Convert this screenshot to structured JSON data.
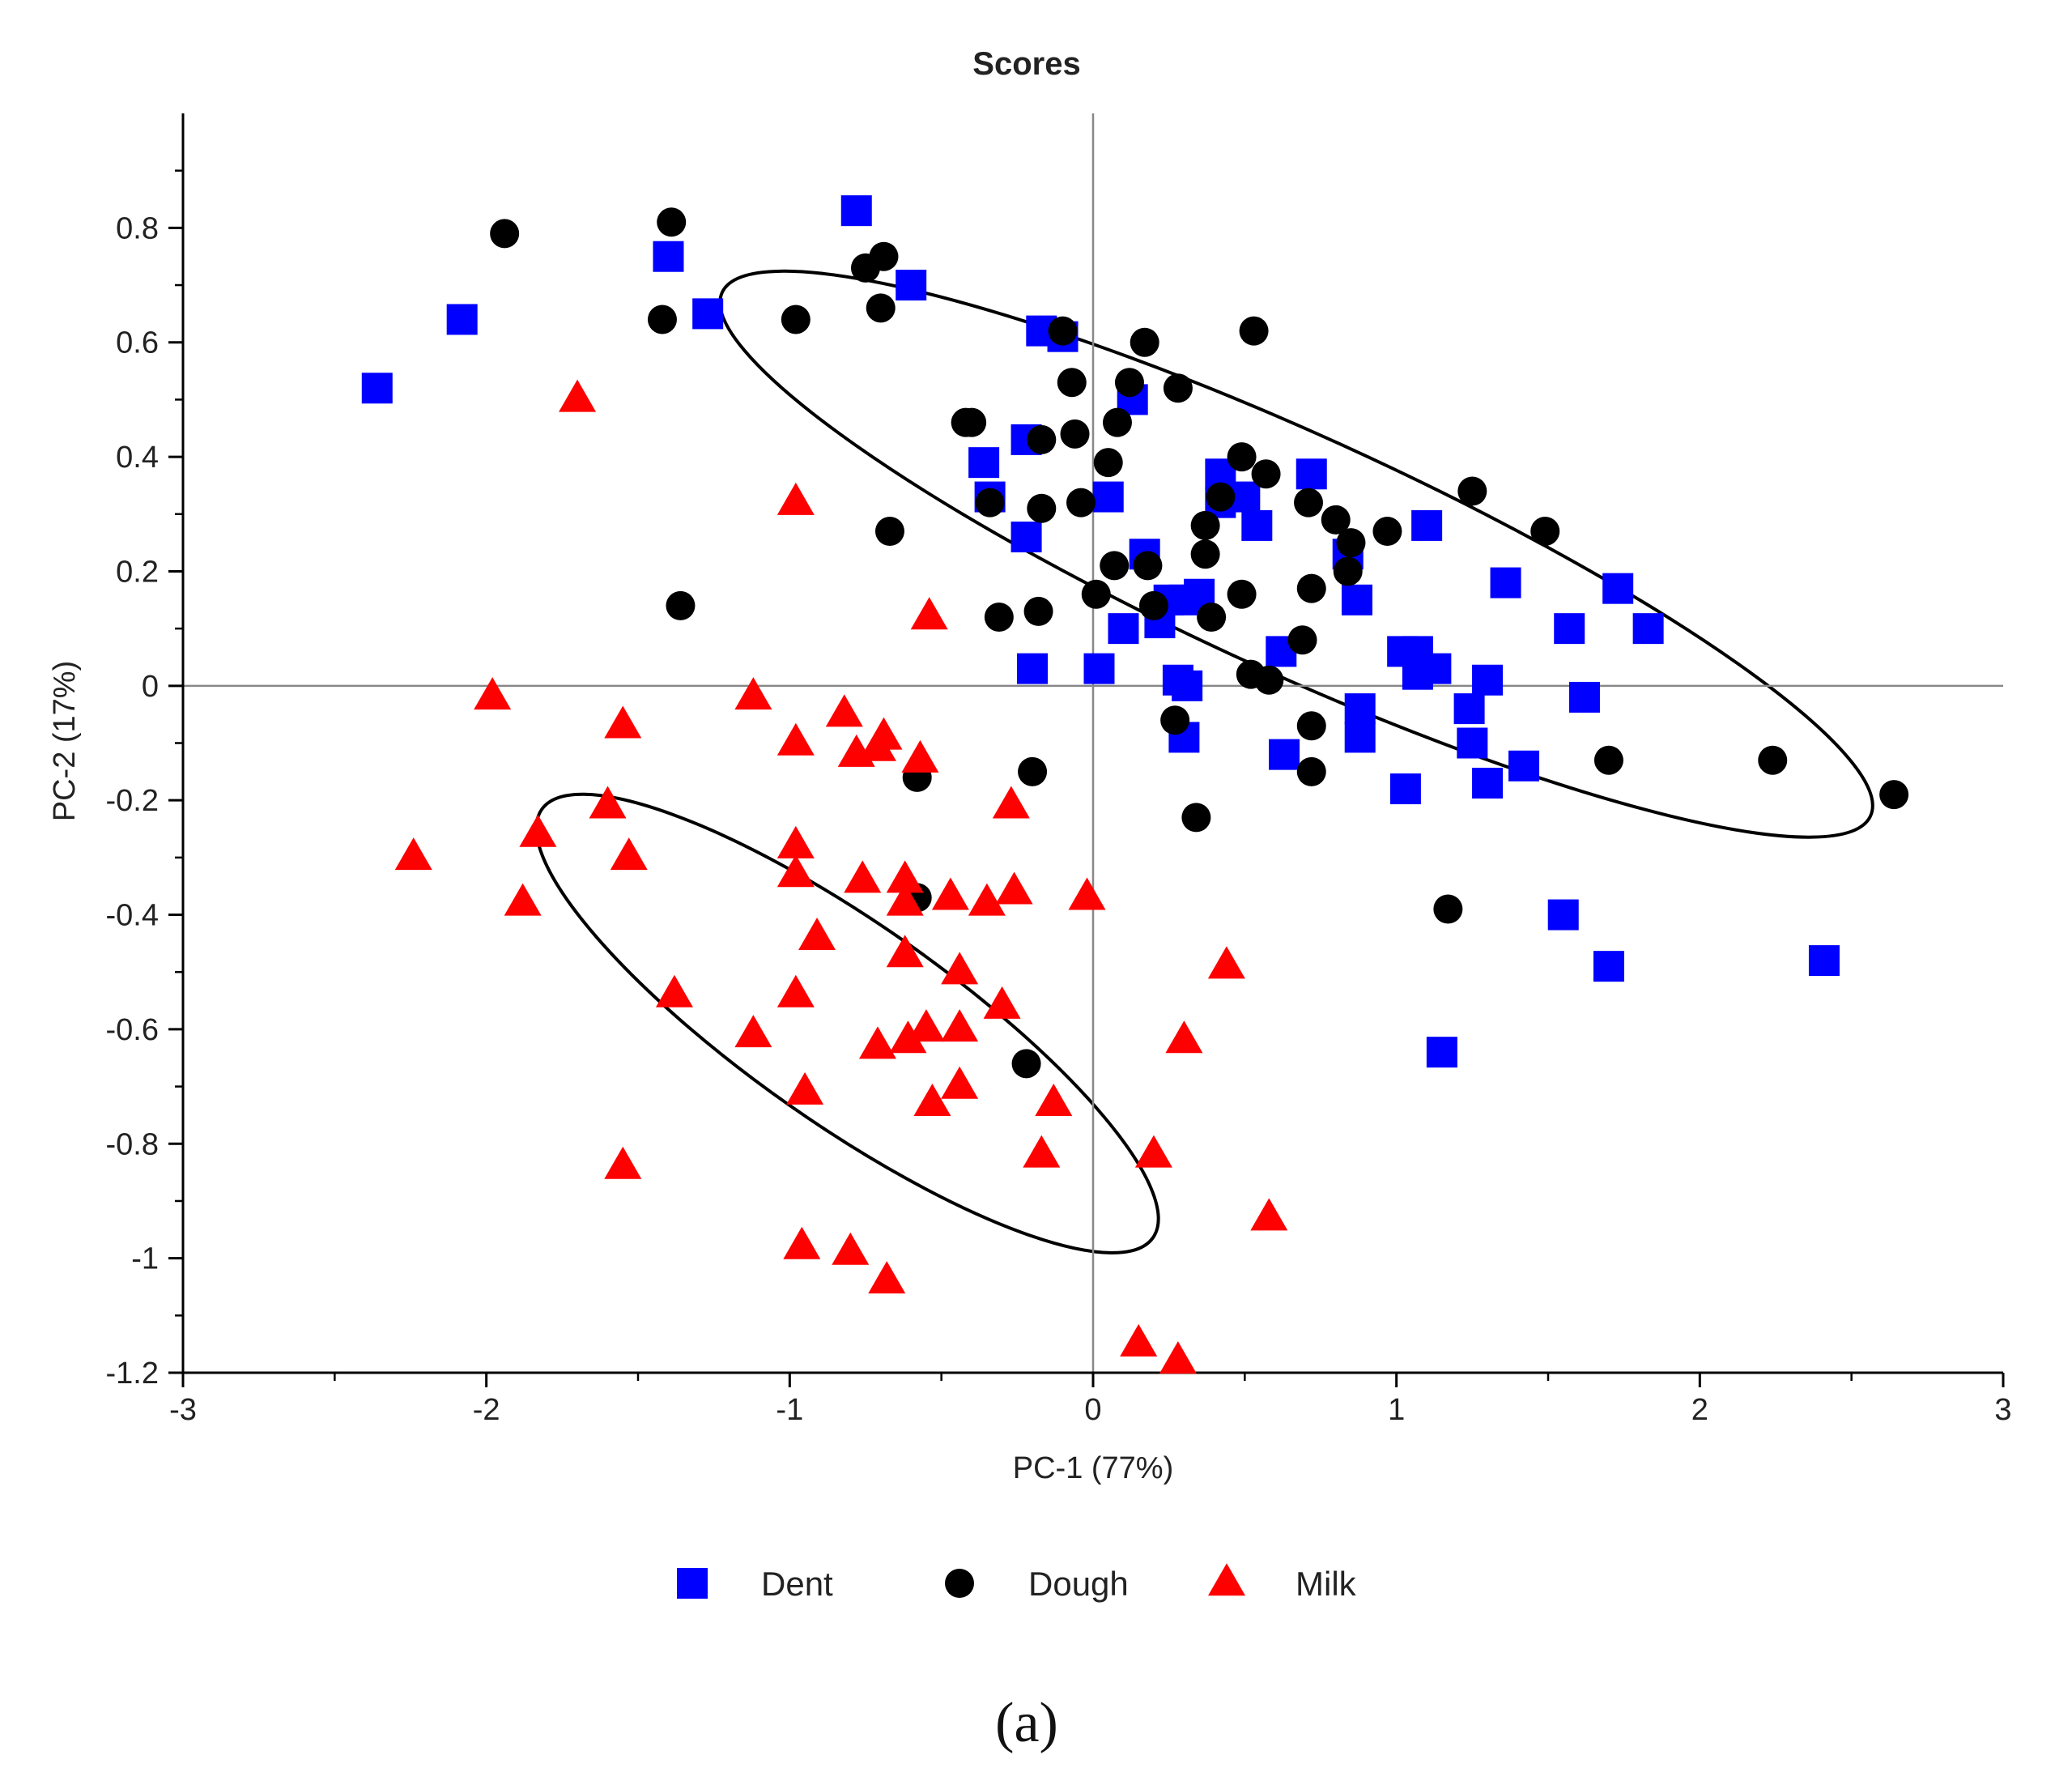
{
  "chart_data": {
    "type": "scatter",
    "title": "Scores",
    "xlabel": "PC-1 (77%)",
    "ylabel": "PC-2 (17%)",
    "xlim": [
      -3,
      3
    ],
    "ylim": [
      -1.2,
      1.0
    ],
    "xticks": [
      -3,
      -2,
      -1,
      0,
      1,
      2,
      3
    ],
    "yticks": [
      -1.2,
      -1,
      -0.8,
      -0.6,
      -0.4,
      -0.2,
      0,
      0.2,
      0.4,
      0.6,
      0.8
    ],
    "grid": false,
    "reference_lines": {
      "x": 0,
      "y": 0
    },
    "legend_position": "bottom",
    "caption": "(a)",
    "series": [
      {
        "name": "Dent",
        "marker": "square",
        "color": "#0000ff",
        "points": [
          [
            -2.36,
            0.52
          ],
          [
            -2.08,
            0.64
          ],
          [
            -1.4,
            0.75
          ],
          [
            -1.27,
            0.65
          ],
          [
            -0.78,
            0.83
          ],
          [
            -0.6,
            0.7
          ],
          [
            -0.17,
            0.62
          ],
          [
            -0.1,
            0.61
          ],
          [
            0.13,
            0.5
          ],
          [
            -0.22,
            0.43
          ],
          [
            -0.36,
            0.39
          ],
          [
            -0.34,
            0.33
          ],
          [
            0.05,
            0.33
          ],
          [
            -0.22,
            0.26
          ],
          [
            0.17,
            0.23
          ],
          [
            0.25,
            0.15
          ],
          [
            0.3,
            0.15
          ],
          [
            0.35,
            0.16
          ],
          [
            0.1,
            0.1
          ],
          [
            0.22,
            0.11
          ],
          [
            -0.2,
            0.03
          ],
          [
            0.02,
            0.03
          ],
          [
            0.28,
            0.01
          ],
          [
            0.31,
            0.0
          ],
          [
            0.3,
            -0.09
          ],
          [
            0.42,
            0.37
          ],
          [
            0.42,
            0.32
          ],
          [
            0.5,
            0.33
          ],
          [
            0.54,
            0.28
          ],
          [
            0.72,
            0.37
          ],
          [
            0.84,
            0.23
          ],
          [
            0.87,
            0.15
          ],
          [
            0.62,
            0.06
          ],
          [
            0.63,
            -0.12
          ],
          [
            0.88,
            -0.04
          ],
          [
            0.88,
            -0.09
          ],
          [
            1.02,
            0.06
          ],
          [
            1.07,
            0.06
          ],
          [
            1.13,
            0.03
          ],
          [
            1.07,
            0.02
          ],
          [
            1.1,
            0.28
          ],
          [
            1.03,
            -0.18
          ],
          [
            1.24,
            -0.04
          ],
          [
            1.25,
            -0.1
          ],
          [
            1.3,
            -0.17
          ],
          [
            1.3,
            0.01
          ],
          [
            1.36,
            0.18
          ],
          [
            1.42,
            -0.14
          ],
          [
            1.57,
            0.1
          ],
          [
            1.62,
            -0.02
          ],
          [
            1.73,
            0.17
          ],
          [
            1.83,
            0.1
          ],
          [
            1.55,
            -0.4
          ],
          [
            1.7,
            -0.49
          ],
          [
            1.15,
            -0.64
          ],
          [
            2.41,
            -0.48
          ]
        ]
      },
      {
        "name": "Dough",
        "marker": "circle",
        "color": "#000000",
        "points": [
          [
            -1.94,
            0.79
          ],
          [
            -1.39,
            0.81
          ],
          [
            -1.42,
            0.64
          ],
          [
            -0.98,
            0.64
          ],
          [
            -0.75,
            0.73
          ],
          [
            -0.69,
            0.75
          ],
          [
            -0.7,
            0.66
          ],
          [
            -0.1,
            0.62
          ],
          [
            -0.42,
            0.46
          ],
          [
            -0.4,
            0.46
          ],
          [
            -0.17,
            0.43
          ],
          [
            -0.07,
            0.53
          ],
          [
            0.12,
            0.53
          ],
          [
            0.17,
            0.6
          ],
          [
            0.28,
            0.52
          ],
          [
            0.08,
            0.46
          ],
          [
            -0.06,
            0.44
          ],
          [
            0.05,
            0.39
          ],
          [
            -0.04,
            0.32
          ],
          [
            -0.34,
            0.32
          ],
          [
            -0.17,
            0.31
          ],
          [
            -0.67,
            0.27
          ],
          [
            0.37,
            0.28
          ],
          [
            0.49,
            0.4
          ],
          [
            0.57,
            0.37
          ],
          [
            0.53,
            0.62
          ],
          [
            0.42,
            0.33
          ],
          [
            0.71,
            0.32
          ],
          [
            0.8,
            0.29
          ],
          [
            0.85,
            0.25
          ],
          [
            0.84,
            0.2
          ],
          [
            0.97,
            0.27
          ],
          [
            1.25,
            0.34
          ],
          [
            1.49,
            0.27
          ],
          [
            0.07,
            0.21
          ],
          [
            0.18,
            0.21
          ],
          [
            0.37,
            0.23
          ],
          [
            0.01,
            0.16
          ],
          [
            0.2,
            0.14
          ],
          [
            0.39,
            0.12
          ],
          [
            0.49,
            0.16
          ],
          [
            0.72,
            0.17
          ],
          [
            -0.18,
            0.13
          ],
          [
            -0.31,
            0.12
          ],
          [
            0.69,
            0.08
          ],
          [
            0.52,
            0.02
          ],
          [
            0.58,
            0.01
          ],
          [
            0.27,
            -0.06
          ],
          [
            0.72,
            -0.07
          ],
          [
            0.72,
            -0.15
          ],
          [
            -1.36,
            0.14
          ],
          [
            -0.2,
            -0.15
          ],
          [
            -0.58,
            -0.16
          ],
          [
            0.34,
            -0.23
          ],
          [
            -0.58,
            -0.37
          ],
          [
            1.17,
            -0.39
          ],
          [
            1.7,
            -0.13
          ],
          [
            2.24,
            -0.13
          ],
          [
            2.64,
            -0.19
          ],
          [
            -0.22,
            -0.66
          ]
        ]
      },
      {
        "name": "Milk",
        "marker": "triangle",
        "color": "#ff0000",
        "points": [
          [
            -1.7,
            0.5
          ],
          [
            -0.98,
            0.32
          ],
          [
            -0.54,
            0.12
          ],
          [
            -1.98,
            -0.02
          ],
          [
            -1.12,
            -0.02
          ],
          [
            -1.55,
            -0.07
          ],
          [
            -0.82,
            -0.05
          ],
          [
            -0.98,
            -0.1
          ],
          [
            -0.78,
            -0.12
          ],
          [
            -0.69,
            -0.09
          ],
          [
            -0.71,
            -0.11
          ],
          [
            -0.57,
            -0.13
          ],
          [
            -1.6,
            -0.21
          ],
          [
            -1.83,
            -0.26
          ],
          [
            -2.24,
            -0.3
          ],
          [
            -1.53,
            -0.3
          ],
          [
            -0.98,
            -0.28
          ],
          [
            -0.98,
            -0.33
          ],
          [
            -0.76,
            -0.34
          ],
          [
            -0.62,
            -0.34
          ],
          [
            -0.62,
            -0.38
          ],
          [
            -0.47,
            -0.37
          ],
          [
            -0.35,
            -0.38
          ],
          [
            -0.26,
            -0.36
          ],
          [
            -0.02,
            -0.37
          ],
          [
            -0.27,
            -0.21
          ],
          [
            -1.88,
            -0.38
          ],
          [
            -0.91,
            -0.44
          ],
          [
            -0.62,
            -0.47
          ],
          [
            -0.44,
            -0.5
          ],
          [
            -1.38,
            -0.54
          ],
          [
            -0.98,
            -0.54
          ],
          [
            -1.12,
            -0.61
          ],
          [
            -0.71,
            -0.63
          ],
          [
            -0.61,
            -0.62
          ],
          [
            -0.55,
            -0.6
          ],
          [
            -0.44,
            -0.6
          ],
          [
            -0.3,
            -0.56
          ],
          [
            -0.95,
            -0.71
          ],
          [
            -0.53,
            -0.73
          ],
          [
            -0.44,
            -0.7
          ],
          [
            -0.13,
            -0.73
          ],
          [
            0.44,
            -0.49
          ],
          [
            0.3,
            -0.62
          ],
          [
            -1.55,
            -0.84
          ],
          [
            -0.17,
            -0.82
          ],
          [
            0.2,
            -0.82
          ],
          [
            0.58,
            -0.93
          ],
          [
            -0.96,
            -0.98
          ],
          [
            -0.8,
            -0.99
          ],
          [
            -0.68,
            -1.04
          ],
          [
            0.15,
            -1.15
          ],
          [
            0.28,
            -1.18
          ]
        ]
      }
    ],
    "ellipses": [
      {
        "group": "Dent/Dough",
        "center": [
          0.67,
          0.23
        ],
        "semi_major": 2.08,
        "semi_minor": 0.39,
        "angle_deg": -24.5
      },
      {
        "group": "Milk",
        "center": [
          -0.81,
          -0.59
        ],
        "semi_major": 1.23,
        "semi_minor": 0.33,
        "angle_deg": -35
      }
    ]
  }
}
